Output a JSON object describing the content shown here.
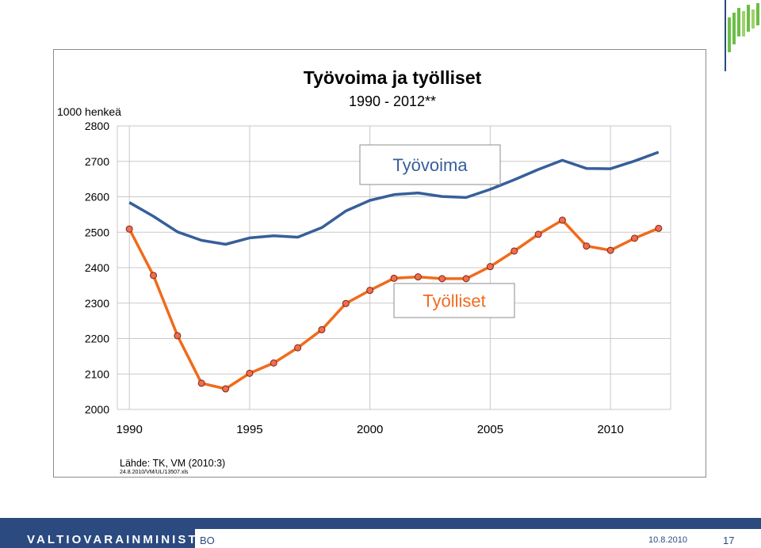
{
  "header": {
    "title": "Työvoima ja työlliset",
    "subtitle": "1990 - 2012**",
    "unit": "1000 henkeä"
  },
  "source": {
    "text": "Lähde: TK, VM (2010:3)",
    "file": "24.8.2010/VM/UL/13507.xls"
  },
  "footer": {
    "org": "VALTIOVARAINMINISTERIÖ",
    "initials": "BO",
    "date": "10.8.2010",
    "page": "17"
  },
  "colors": {
    "tyovoima": "#365f9a",
    "tyolliset": "#f06b1c",
    "marker_fill": "#f26c4f",
    "marker_edge": "#7a2a10",
    "footer": "#2a4a80"
  },
  "chart_data": {
    "type": "line",
    "title": "Työvoima ja työlliset",
    "subtitle": "1990 - 2012**",
    "ylabel": "1000 henkeä",
    "xlabel": "",
    "x": [
      1990,
      1991,
      1992,
      1993,
      1994,
      1995,
      1996,
      1997,
      1998,
      1999,
      2000,
      2001,
      2002,
      2003,
      2004,
      2005,
      2006,
      2007,
      2008,
      2009,
      2010,
      2011,
      2012
    ],
    "xticks": [
      1990,
      1995,
      2000,
      2005,
      2010
    ],
    "yticks": [
      2000,
      2100,
      2200,
      2300,
      2400,
      2500,
      2600,
      2700,
      2800
    ],
    "ylim": [
      2000,
      2800
    ],
    "grid": true,
    "series": [
      {
        "name": "Työvoima",
        "values": [
          2584,
          2545,
          2501,
          2477,
          2466,
          2484,
          2490,
          2486,
          2513,
          2560,
          2590,
          2606,
          2611,
          2601,
          2598,
          2621,
          2648,
          2677,
          2703,
          2680,
          2679,
          2701,
          2726
        ],
        "markers": false
      },
      {
        "name": "Työlliset",
        "values": [
          2509,
          2378,
          2208,
          2074,
          2058,
          2102,
          2131,
          2174,
          2225,
          2299,
          2336,
          2370,
          2374,
          2369,
          2369,
          2403,
          2447,
          2494,
          2534,
          2461,
          2449,
          2483,
          2511
        ],
        "markers": true
      }
    ]
  }
}
